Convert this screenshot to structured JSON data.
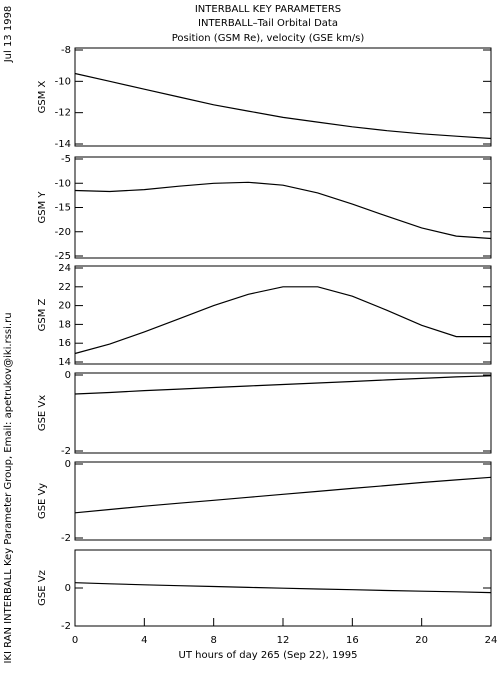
{
  "header": {
    "lines": [
      "INTERBALL KEY PARAMETERS",
      "INTERBALL–Tail Orbital Data",
      "Position (GSM Re), velocity (GSE km/s)"
    ],
    "date": "Jul 13 1998",
    "credit": "IKI RAN INTERBALL Key Parameter Group, Email: apetrukov@iki.rssi.ru"
  },
  "chart_data": [
    {
      "type": "line",
      "ylabel": "GSM X",
      "x": [
        0,
        2,
        4,
        6,
        8,
        10,
        12,
        14,
        16,
        18,
        20,
        22,
        24
      ],
      "series": [
        {
          "color": "#000000",
          "values": [
            -9.5,
            -10.0,
            -10.5,
            -11.0,
            -11.5,
            -11.9,
            -12.3,
            -12.6,
            -12.9,
            -13.15,
            -13.35,
            -13.5,
            -13.65
          ]
        }
      ],
      "xlim": [
        0,
        24
      ],
      "ylim": [
        -14,
        -8
      ],
      "yticks": [
        -14,
        -12,
        -10,
        -8
      ]
    },
    {
      "type": "line",
      "ylabel": "GSM Y",
      "x": [
        0,
        2,
        4,
        6,
        8,
        10,
        12,
        14,
        16,
        18,
        20,
        22,
        24
      ],
      "series": [
        {
          "color": "#000000",
          "values": [
            -11.5,
            -11.7,
            -11.3,
            -10.6,
            -10.0,
            -9.8,
            -10.4,
            -12.0,
            -14.3,
            -16.8,
            -19.2,
            -20.9,
            -21.4
          ]
        }
      ],
      "xlim": [
        0,
        24
      ],
      "ylim": [
        -25,
        -5
      ],
      "yticks": [
        -25,
        -20,
        -15,
        -10,
        -5
      ]
    },
    {
      "type": "line",
      "ylabel": "GSM Z",
      "x": [
        0,
        2,
        4,
        6,
        8,
        10,
        12,
        14,
        16,
        18,
        20,
        22,
        24
      ],
      "series": [
        {
          "color": "#000000",
          "values": [
            14.9,
            15.9,
            17.2,
            18.6,
            20.0,
            21.2,
            22.0,
            22.0,
            21.0,
            19.5,
            17.9,
            16.7,
            16.7
          ]
        }
      ],
      "xlim": [
        0,
        24
      ],
      "ylim": [
        14,
        24
      ],
      "yticks": [
        14,
        16,
        18,
        20,
        22,
        24
      ]
    },
    {
      "type": "line",
      "ylabel": "GSE Vx",
      "x": [
        0,
        2,
        4,
        6,
        8,
        10,
        12,
        14,
        16,
        18,
        20,
        22,
        24
      ],
      "series": [
        {
          "color": "#000000",
          "values": [
            -0.5,
            -0.46,
            -0.41,
            -0.37,
            -0.33,
            -0.29,
            -0.25,
            -0.21,
            -0.17,
            -0.13,
            -0.09,
            -0.05,
            -0.02
          ]
        }
      ],
      "xlim": [
        0,
        24
      ],
      "ylim": [
        -2,
        0
      ],
      "yticks": [
        -2,
        0
      ]
    },
    {
      "type": "line",
      "ylabel": "GSE Vy",
      "x": [
        0,
        2,
        4,
        6,
        8,
        10,
        12,
        14,
        16,
        18,
        20,
        22,
        24
      ],
      "series": [
        {
          "color": "#000000",
          "values": [
            -1.32,
            -1.23,
            -1.14,
            -1.06,
            -0.98,
            -0.9,
            -0.82,
            -0.74,
            -0.66,
            -0.58,
            -0.5,
            -0.43,
            -0.36
          ]
        }
      ],
      "xlim": [
        0,
        24
      ],
      "ylim": [
        -2,
        0
      ],
      "yticks": [
        -2,
        0
      ]
    },
    {
      "type": "line",
      "ylabel": "GSE Vz",
      "x": [
        0,
        2,
        4,
        6,
        8,
        10,
        12,
        14,
        16,
        18,
        20,
        22,
        24
      ],
      "series": [
        {
          "color": "#000000",
          "values": [
            0.28,
            0.22,
            0.17,
            0.12,
            0.08,
            0.03,
            -0.01,
            -0.05,
            -0.09,
            -0.13,
            -0.17,
            -0.2,
            -0.24
          ]
        }
      ],
      "xlim": [
        0,
        24
      ],
      "ylim": [
        -2,
        2
      ],
      "yticks": [
        -2,
        0
      ],
      "xticks": [
        0,
        4,
        8,
        12,
        16,
        20,
        24
      ],
      "xlabel": "UT hours of day 265 (Sep 22), 1995"
    }
  ]
}
